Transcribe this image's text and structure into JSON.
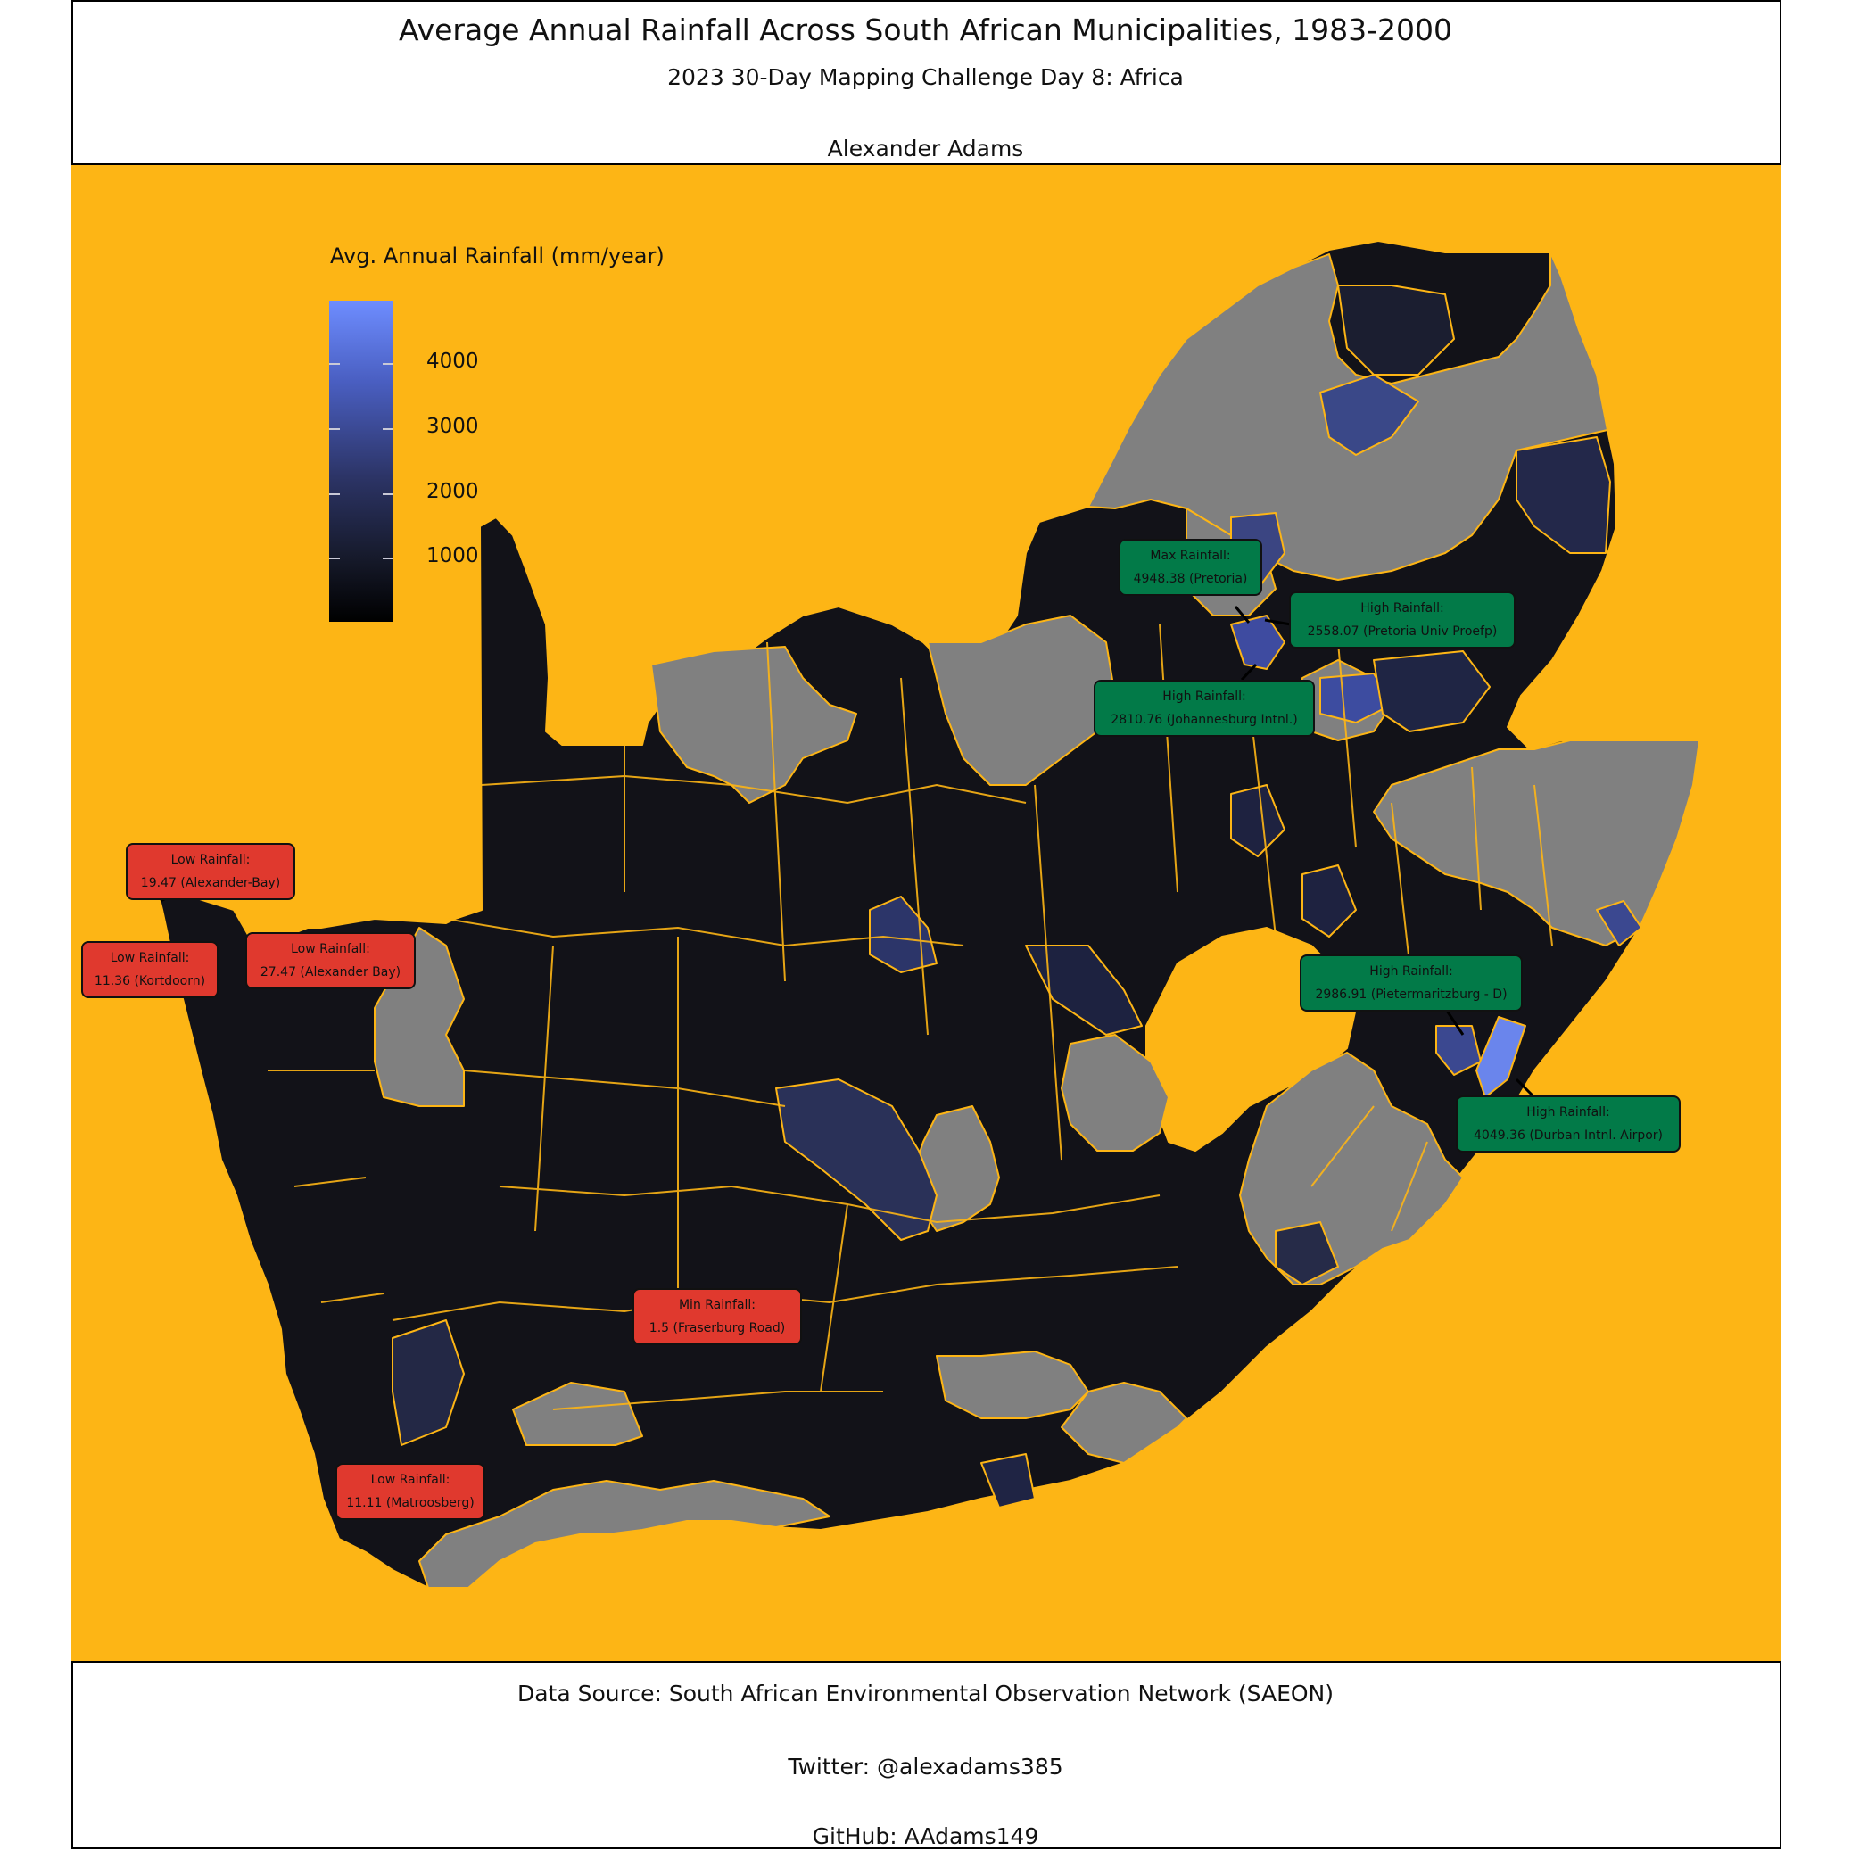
{
  "header": {
    "title": "Average Annual Rainfall Across South African Municipalities, 1983-2000",
    "subtitle": "2023 30-Day Mapping Challenge Day 8: Africa",
    "author": "Alexander Adams"
  },
  "caption": {
    "source": "Data Source: South African Environmental Observation Network (SAEON)",
    "twitter": "Twitter: @alexadams385",
    "github": "GitHub: AAdams149"
  },
  "colors": {
    "panel_background": "#fdb515",
    "no_data": "#808080",
    "border": "#fdb515",
    "low_label": "#e0392e",
    "high_label": "#027a48",
    "scale_low": "#000000",
    "scale_high": "#6e8dff"
  },
  "legend": {
    "title": "Avg. Annual Rainfall (mm/year)",
    "ticks": [
      "4000",
      "3000",
      "2000",
      "1000"
    ]
  },
  "callouts": [
    {
      "kind": "low",
      "line1": "Low Rainfall:",
      "line2": "19.47 (Alexander-Bay)"
    },
    {
      "kind": "low",
      "line1": "Low Rainfall:",
      "line2": "11.36 (Kortdoorn)"
    },
    {
      "kind": "low",
      "line1": "Low Rainfall:",
      "line2": "27.47 (Alexander Bay)"
    },
    {
      "kind": "low",
      "line1": "Min Rainfall:",
      "line2": "1.5 (Fraserburg Road)"
    },
    {
      "kind": "low",
      "line1": "Low Rainfall:",
      "line2": "11.11 (Matroosberg)"
    },
    {
      "kind": "high",
      "line1": "Max Rainfall:",
      "line2": "4948.38 (Pretoria)"
    },
    {
      "kind": "high",
      "line1": "High Rainfall:",
      "line2": "2558.07 (Pretoria Univ Proefp)"
    },
    {
      "kind": "high",
      "line1": "High Rainfall:",
      "line2": "2810.76 (Johannesburg Intnl.)"
    },
    {
      "kind": "high",
      "line1": "High Rainfall:",
      "line2": "2986.91 (Pietermaritzburg - D)"
    },
    {
      "kind": "high",
      "line1": "High Rainfall:",
      "line2": "4049.36 (Durban Intnl. Airpor)"
    }
  ]
}
